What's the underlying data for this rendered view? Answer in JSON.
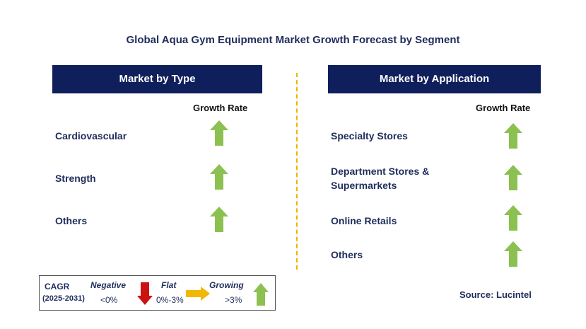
{
  "title": "Global Aqua Gym Equipment Market Growth Forecast by Segment",
  "left_panel": {
    "header": "Market by Type",
    "column_label": "Growth Rate",
    "items": [
      {
        "label_lines": [
          "Cardiovascular"
        ],
        "trend": "growing"
      },
      {
        "label_lines": [
          "Strength"
        ],
        "trend": "growing"
      },
      {
        "label_lines": [
          "Others"
        ],
        "trend": "growing"
      }
    ]
  },
  "right_panel": {
    "header": "Market by Application",
    "column_label": "Growth Rate",
    "items": [
      {
        "label_lines": [
          "Specialty Stores"
        ],
        "trend": "growing"
      },
      {
        "label_lines": [
          "Department Stores &",
          "Supermarkets"
        ],
        "trend": "growing"
      },
      {
        "label_lines": [
          "Online Retails"
        ],
        "trend": "growing"
      },
      {
        "label_lines": [
          "Others"
        ],
        "trend": "growing"
      }
    ]
  },
  "legend": {
    "cagr_label": "CAGR",
    "period": "(2025-2031)",
    "negative_label": "Negative",
    "negative_range": "<0%",
    "flat_label": "Flat",
    "flat_range": "0%-3%",
    "growing_label": "Growing",
    "growing_range": ">3%"
  },
  "colors": {
    "header_bg": "#0f1f5c",
    "growing_arrow": "#8cc152",
    "negative_arrow": "#cc1111",
    "flat_arrow": "#f2b705",
    "divider": "#f0b400"
  },
  "source": "Source: Lucintel"
}
